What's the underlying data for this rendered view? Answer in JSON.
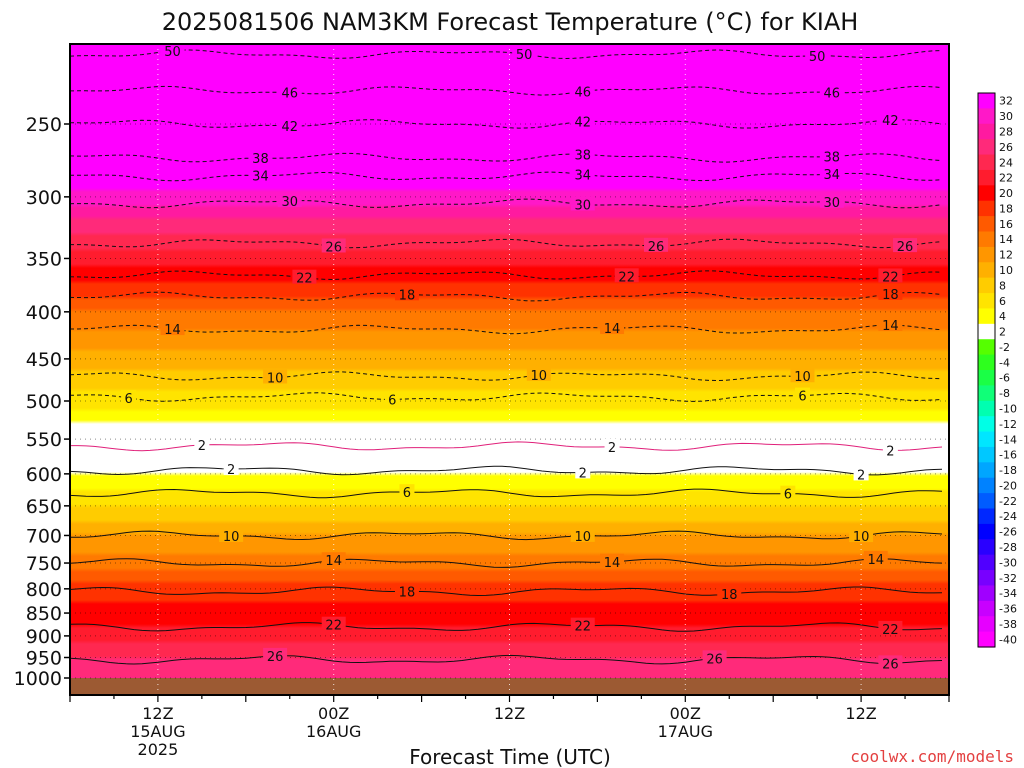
{
  "chart_data": {
    "type": "heatmap",
    "title": "2025081506 NAM3KM Forecast Temperature (°C) for KIAH",
    "xlabel": "Forecast Time (UTC)",
    "ylabel": "",
    "watermark": "coolwx.com/models",
    "x_ticks": [
      {
        "hour": 6,
        "lines": [
          "12Z",
          "15AUG",
          "2025"
        ]
      },
      {
        "hour": 18,
        "lines": [
          "00Z",
          "16AUG"
        ]
      },
      {
        "hour": 30,
        "lines": [
          "12Z"
        ]
      },
      {
        "hour": 42,
        "lines": [
          "00Z",
          "17AUG"
        ]
      },
      {
        "hour": 54,
        "lines": [
          "12Z"
        ]
      }
    ],
    "x_range": [
      0,
      60
    ],
    "y_axis": {
      "type": "log-pressure",
      "range_hpa": [
        1000,
        200
      ],
      "ticks": [
        1000,
        950,
        900,
        850,
        800,
        750,
        700,
        650,
        600,
        550,
        500,
        450,
        400,
        350,
        300,
        250
      ]
    },
    "colorbar": {
      "labels": [
        32,
        30,
        28,
        26,
        24,
        22,
        20,
        18,
        16,
        14,
        12,
        10,
        8,
        6,
        4,
        2,
        -2,
        -4,
        -6,
        -8,
        -10,
        -12,
        -14,
        -16,
        -18,
        -20,
        -22,
        -24,
        -26,
        -28,
        -30,
        -32,
        -34,
        -36,
        -38,
        -40
      ],
      "colors": [
        "#ff00ff",
        "#ff18c8",
        "#ff1aa0",
        "#ff2a7a",
        "#ff2850",
        "#ff1c2e",
        "#ff0000",
        "#ff3200",
        "#ff5a00",
        "#ff7a00",
        "#ff9600",
        "#ffb000",
        "#ffcc00",
        "#ffe400",
        "#ffff00",
        "#ffffff",
        "#55ff00",
        "#2eff1e",
        "#1aff46",
        "#10ff78",
        "#00ffb0",
        "#00ffe6",
        "#00e6ff",
        "#00c8ff",
        "#00a6ff",
        "#0082ff",
        "#005cff",
        "#0028ff",
        "#0000ff",
        "#2a00ff",
        "#5000ff",
        "#7800ff",
        "#a000ff",
        "#c800ff",
        "#e600ff",
        "#ff00ff"
      ]
    },
    "temperature_profile": [
      {
        "p": 1000,
        "t": 27
      },
      {
        "p": 950,
        "t": 25
      },
      {
        "p": 900,
        "t": 22
      },
      {
        "p": 850,
        "t": 20
      },
      {
        "p": 800,
        "t": 18
      },
      {
        "p": 750,
        "t": 14
      },
      {
        "p": 700,
        "t": 11
      },
      {
        "p": 650,
        "t": 7
      },
      {
        "p": 600,
        "t": 3
      },
      {
        "p": 570,
        "t": 0
      },
      {
        "p": 550,
        "t": -1
      },
      {
        "p": 500,
        "t": -6
      },
      {
        "p": 450,
        "t": -10
      },
      {
        "p": 400,
        "t": -15
      },
      {
        "p": 350,
        "t": -22
      },
      {
        "p": 300,
        "t": -30
      },
      {
        "p": 270,
        "t": -36
      },
      {
        "p": 250,
        "t": -42
      },
      {
        "p": 230,
        "t": -46
      },
      {
        "p": 210,
        "t": -50
      },
      {
        "p": 200,
        "t": -52
      }
    ],
    "contours": [
      {
        "value": "50",
        "p": 210,
        "labels_at_hours": [
          7,
          31,
          51
        ]
      },
      {
        "value": "46",
        "p": 230,
        "labels_at_hours": [
          15,
          35,
          52
        ]
      },
      {
        "value": "42",
        "p": 250,
        "labels_at_hours": [
          15,
          35,
          56
        ]
      },
      {
        "value": "38",
        "p": 272,
        "labels_at_hours": [
          13,
          35,
          52
        ]
      },
      {
        "value": "34",
        "p": 285,
        "labels_at_hours": [
          13,
          35,
          52
        ]
      },
      {
        "value": "30",
        "p": 305,
        "labels_at_hours": [
          15,
          35,
          52
        ]
      },
      {
        "value": "26",
        "p": 337,
        "labels_at_hours": [
          18,
          40,
          57
        ]
      },
      {
        "value": "22",
        "p": 365,
        "labels_at_hours": [
          16,
          38,
          56
        ]
      },
      {
        "value": "18",
        "p": 385,
        "labels_at_hours": [
          23,
          56
        ]
      },
      {
        "value": "14",
        "p": 418,
        "labels_at_hours": [
          7,
          37,
          56
        ]
      },
      {
        "value": "10",
        "p": 470,
        "labels_at_hours": [
          14,
          32,
          50
        ]
      },
      {
        "value": "6",
        "p": 495,
        "labels_at_hours": [
          4,
          22,
          50
        ]
      },
      {
        "value": "2",
        "p": 560,
        "labels_at_hours": [
          9,
          37,
          56
        ]
      },
      {
        "value": "2",
        "p": 595,
        "labels_at_hours": [
          11,
          35,
          54
        ]
      },
      {
        "value": "6",
        "p": 630,
        "labels_at_hours": [
          23,
          49
        ]
      },
      {
        "value": "10",
        "p": 700,
        "labels_at_hours": [
          11,
          35,
          54
        ]
      },
      {
        "value": "14",
        "p": 750,
        "labels_at_hours": [
          18,
          37,
          55
        ]
      },
      {
        "value": "18",
        "p": 805,
        "labels_at_hours": [
          23,
          45
        ]
      },
      {
        "value": "22",
        "p": 880,
        "labels_at_hours": [
          18,
          35,
          56
        ]
      },
      {
        "value": "26",
        "p": 955,
        "labels_at_hours": [
          14,
          44,
          56
        ]
      }
    ]
  }
}
